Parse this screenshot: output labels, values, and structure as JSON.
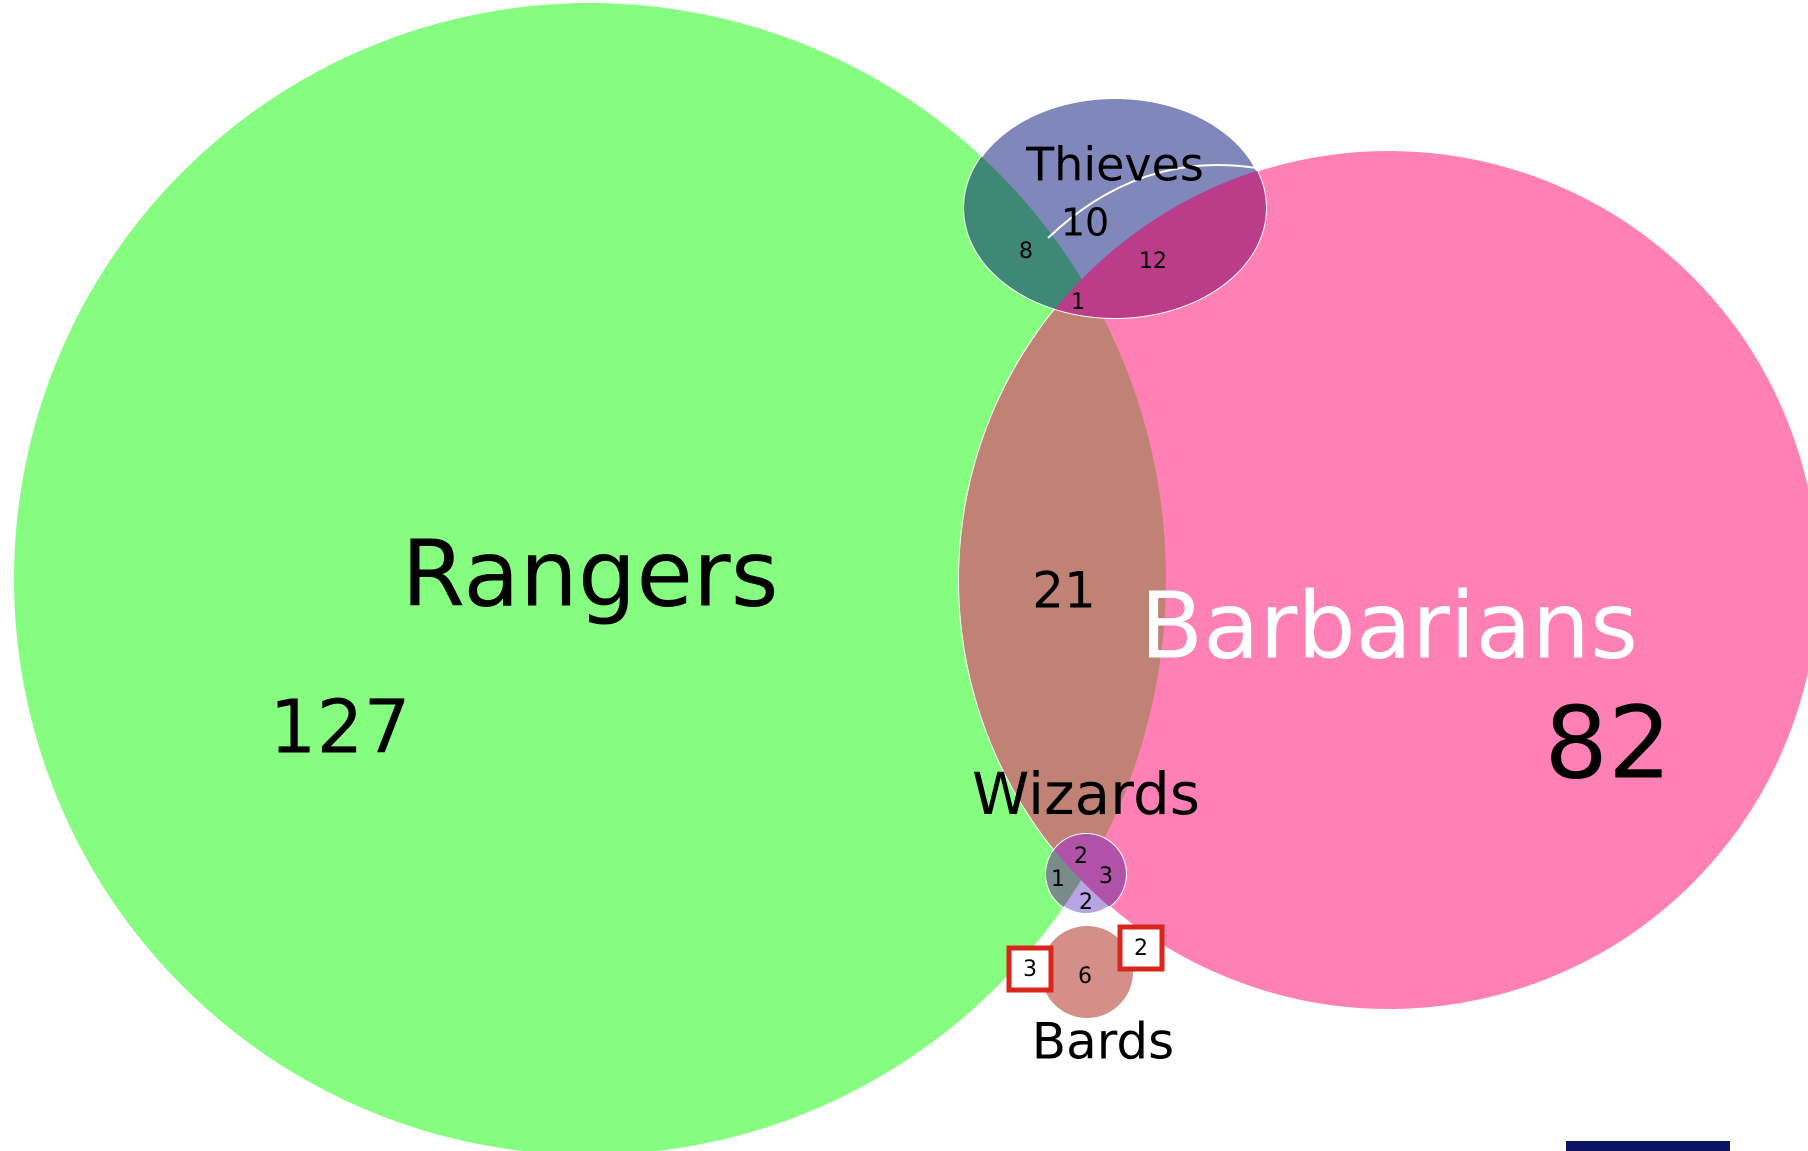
{
  "sets": [
    "Rangers",
    "Barbarians",
    "Thieves",
    "Wizards",
    "Bards"
  ],
  "region_counts": [
    127,
    82,
    10,
    8,
    12,
    1,
    21,
    2,
    3,
    1,
    2,
    6,
    3,
    2
  ]
}
